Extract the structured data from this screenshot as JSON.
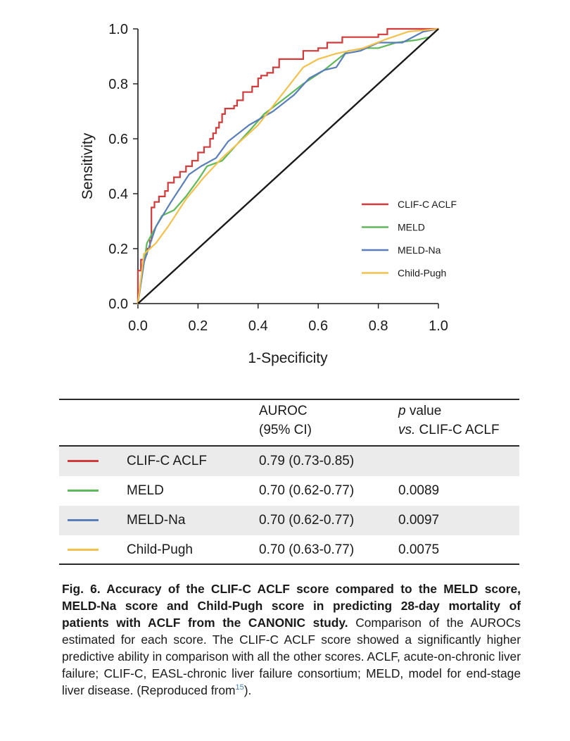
{
  "chart_data": {
    "type": "line",
    "xlabel": "1-Specificity",
    "ylabel": "Sensitivity",
    "xlim": [
      0,
      1
    ],
    "ylim": [
      0,
      1
    ],
    "x_ticks": [
      "0.0",
      "0.2",
      "0.4",
      "0.6",
      "0.8",
      "1.0"
    ],
    "y_ticks": [
      "0.0",
      "0.2",
      "0.4",
      "0.6",
      "0.8",
      "1.0"
    ],
    "grid": false,
    "legend_position": "lower-right",
    "reference_line": {
      "x": [
        0,
        1
      ],
      "y": [
        0,
        1
      ],
      "color": "#1a1a1a"
    },
    "series": [
      {
        "name": "CLIF-C ACLF",
        "color": "#d13b3b",
        "step": true,
        "points": [
          [
            0,
            0
          ],
          [
            0,
            0.12
          ],
          [
            0.01,
            0.12
          ],
          [
            0.01,
            0.16
          ],
          [
            0.02,
            0.16
          ],
          [
            0.02,
            0.18
          ],
          [
            0.03,
            0.18
          ],
          [
            0.03,
            0.2
          ],
          [
            0.04,
            0.2
          ],
          [
            0.04,
            0.23
          ],
          [
            0.045,
            0.23
          ],
          [
            0.045,
            0.35
          ],
          [
            0.055,
            0.35
          ],
          [
            0.055,
            0.37
          ],
          [
            0.07,
            0.37
          ],
          [
            0.07,
            0.39
          ],
          [
            0.09,
            0.39
          ],
          [
            0.09,
            0.41
          ],
          [
            0.1,
            0.41
          ],
          [
            0.1,
            0.44
          ],
          [
            0.12,
            0.44
          ],
          [
            0.12,
            0.46
          ],
          [
            0.14,
            0.46
          ],
          [
            0.14,
            0.48
          ],
          [
            0.16,
            0.48
          ],
          [
            0.16,
            0.5
          ],
          [
            0.18,
            0.5
          ],
          [
            0.18,
            0.52
          ],
          [
            0.2,
            0.52
          ],
          [
            0.2,
            0.55
          ],
          [
            0.22,
            0.55
          ],
          [
            0.22,
            0.57
          ],
          [
            0.24,
            0.57
          ],
          [
            0.24,
            0.6
          ],
          [
            0.25,
            0.6
          ],
          [
            0.25,
            0.62
          ],
          [
            0.26,
            0.62
          ],
          [
            0.26,
            0.64
          ],
          [
            0.27,
            0.64
          ],
          [
            0.27,
            0.66
          ],
          [
            0.28,
            0.66
          ],
          [
            0.28,
            0.69
          ],
          [
            0.29,
            0.69
          ],
          [
            0.29,
            0.71
          ],
          [
            0.32,
            0.71
          ],
          [
            0.32,
            0.72
          ],
          [
            0.33,
            0.72
          ],
          [
            0.33,
            0.74
          ],
          [
            0.35,
            0.74
          ],
          [
            0.35,
            0.77
          ],
          [
            0.38,
            0.77
          ],
          [
            0.38,
            0.79
          ],
          [
            0.4,
            0.79
          ],
          [
            0.4,
            0.82
          ],
          [
            0.41,
            0.82
          ],
          [
            0.41,
            0.83
          ],
          [
            0.43,
            0.83
          ],
          [
            0.43,
            0.84
          ],
          [
            0.45,
            0.84
          ],
          [
            0.45,
            0.86
          ],
          [
            0.47,
            0.86
          ],
          [
            0.47,
            0.89
          ],
          [
            0.55,
            0.89
          ],
          [
            0.55,
            0.92
          ],
          [
            0.6,
            0.92
          ],
          [
            0.6,
            0.93
          ],
          [
            0.63,
            0.93
          ],
          [
            0.63,
            0.95
          ],
          [
            0.68,
            0.95
          ],
          [
            0.68,
            0.97
          ],
          [
            0.8,
            0.97
          ],
          [
            0.8,
            0.98
          ],
          [
            0.83,
            0.98
          ],
          [
            0.83,
            1
          ],
          [
            1,
            1
          ]
        ]
      },
      {
        "name": "MELD",
        "color": "#5fb85a",
        "step": false,
        "points": [
          [
            0,
            0
          ],
          [
            0.03,
            0.22
          ],
          [
            0.08,
            0.32
          ],
          [
            0.12,
            0.34
          ],
          [
            0.16,
            0.39
          ],
          [
            0.2,
            0.45
          ],
          [
            0.23,
            0.5
          ],
          [
            0.28,
            0.52
          ],
          [
            0.33,
            0.58
          ],
          [
            0.38,
            0.64
          ],
          [
            0.42,
            0.69
          ],
          [
            0.48,
            0.74
          ],
          [
            0.55,
            0.8
          ],
          [
            0.62,
            0.85
          ],
          [
            0.7,
            0.92
          ],
          [
            0.76,
            0.93
          ],
          [
            0.8,
            0.93
          ],
          [
            0.86,
            0.95
          ],
          [
            0.93,
            0.96
          ],
          [
            0.97,
            0.97
          ],
          [
            1,
            1
          ]
        ]
      },
      {
        "name": "MELD-Na",
        "color": "#5a7fb8",
        "step": false,
        "points": [
          [
            0,
            0
          ],
          [
            0.02,
            0.15
          ],
          [
            0.06,
            0.28
          ],
          [
            0.11,
            0.37
          ],
          [
            0.17,
            0.47
          ],
          [
            0.21,
            0.5
          ],
          [
            0.26,
            0.53
          ],
          [
            0.3,
            0.59
          ],
          [
            0.37,
            0.65
          ],
          [
            0.45,
            0.7
          ],
          [
            0.52,
            0.76
          ],
          [
            0.57,
            0.82
          ],
          [
            0.62,
            0.85
          ],
          [
            0.66,
            0.86
          ],
          [
            0.69,
            0.91
          ],
          [
            0.74,
            0.92
          ],
          [
            0.8,
            0.95
          ],
          [
            0.88,
            0.95
          ],
          [
            0.95,
            0.99
          ],
          [
            1,
            1
          ]
        ]
      },
      {
        "name": "Child-Pugh",
        "color": "#f2c14e",
        "step": false,
        "points": [
          [
            0,
            0
          ],
          [
            0.02,
            0.18
          ],
          [
            0.06,
            0.22
          ],
          [
            0.1,
            0.28
          ],
          [
            0.16,
            0.38
          ],
          [
            0.22,
            0.46
          ],
          [
            0.28,
            0.53
          ],
          [
            0.34,
            0.59
          ],
          [
            0.4,
            0.65
          ],
          [
            0.45,
            0.72
          ],
          [
            0.5,
            0.79
          ],
          [
            0.55,
            0.86
          ],
          [
            0.6,
            0.89
          ],
          [
            0.66,
            0.91
          ],
          [
            0.75,
            0.93
          ],
          [
            0.82,
            0.96
          ],
          [
            0.9,
            0.99
          ],
          [
            1,
            1
          ]
        ]
      }
    ]
  },
  "table": {
    "header": {
      "auroc_line1": "AUROC",
      "auroc_line2": "(95% CI)",
      "p_line1_italic": "p",
      "p_line1_rest": " value",
      "p_line2_italic": "vs.",
      "p_line2_rest": " CLIF-C ACLF"
    },
    "rows": [
      {
        "name": "CLIF-C ACLF",
        "color": "#d13b3b",
        "auroc": "0.79 (0.73-0.85)",
        "p": ""
      },
      {
        "name": "MELD",
        "color": "#5fb85a",
        "auroc": "0.70 (0.62-0.77)",
        "p": "0.0089"
      },
      {
        "name": "MELD-Na",
        "color": "#5a7fb8",
        "auroc": "0.70 (0.62-0.77)",
        "p": "0.0097"
      },
      {
        "name": "Child-Pugh",
        "color": "#f2c14e",
        "auroc": "0.70 (0.63-0.77)",
        "p": "0.0075"
      }
    ]
  },
  "caption": {
    "bold": "Fig. 6. Accuracy of the CLIF-C ACLF score compared to the MELD score, MELD-Na score and Child-Pugh score in predicting 28-day mortality of patients with ACLF from the CANONIC study.",
    "text": " Comparison of the AUROCs estimated for each score. The CLIF-C ACLF score showed a significantly higher predictive ability in comparison with all the other scores. ACLF, acute-on-chronic liver failure; CLIF-C, EASL-chronic liver failure consortium; MELD, model for end-stage liver disease. (Reproduced from",
    "ref": "15",
    "end": ")."
  }
}
